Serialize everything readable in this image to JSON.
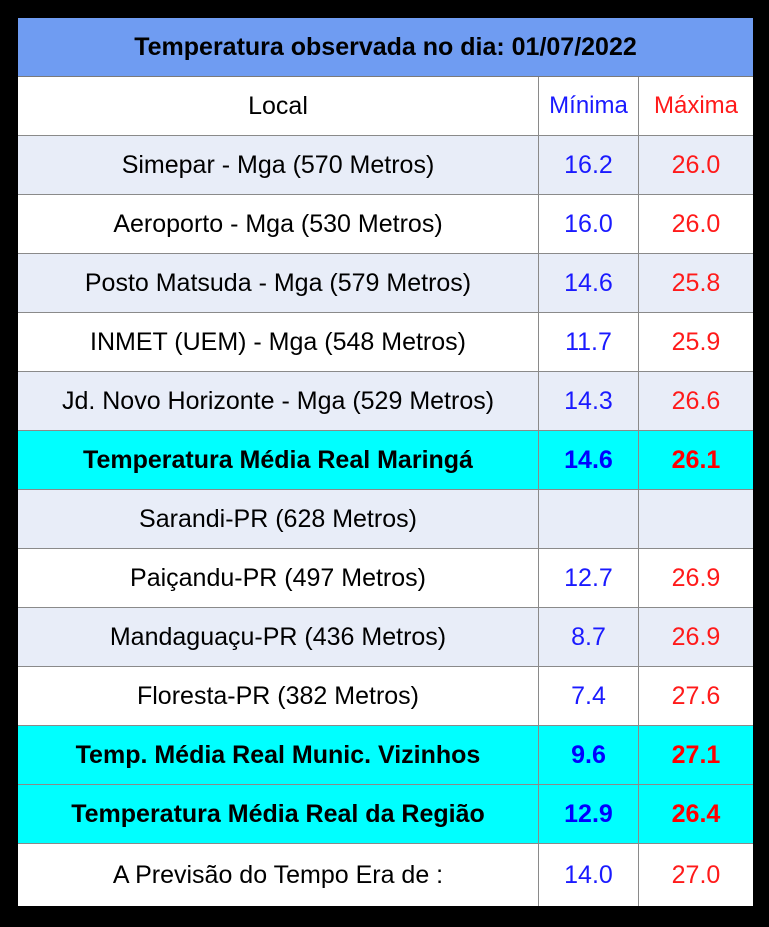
{
  "title": "Temperatura observada no dia: 01/07/2022",
  "header": {
    "local": "Local",
    "min": "Mínima",
    "max": "Máxima"
  },
  "rows": [
    {
      "local": "Simepar - Mga  (570 Metros)",
      "min": "16.2",
      "max": "26.0"
    },
    {
      "local": "Aeroporto - Mga (530 Metros)",
      "min": "16.0",
      "max": "26.0"
    },
    {
      "local": "Posto Matsuda - Mga (579 Metros)",
      "min": "14.6",
      "max": "25.8"
    },
    {
      "local": "INMET (UEM) - Mga  (548 Metros)",
      "min": "11.7",
      "max": "25.9"
    },
    {
      "local": "Jd. Novo Horizonte - Mga (529 Metros)",
      "min": "14.3",
      "max": "26.6"
    },
    {
      "local": "Temperatura Média Real Maringá",
      "min": "14.6",
      "max": "26.1"
    },
    {
      "local": "Sarandi-PR  (628 Metros)",
      "min": "",
      "max": ""
    },
    {
      "local": "Paiçandu-PR (497 Metros)",
      "min": "12.7",
      "max": "26.9"
    },
    {
      "local": "Mandaguaçu-PR (436 Metros)",
      "min": "8.7",
      "max": "26.9"
    },
    {
      "local": "Floresta-PR (382 Metros)",
      "min": "7.4",
      "max": "27.6"
    },
    {
      "local": "Temp. Média Real Munic. Vizinhos",
      "min": "9.6",
      "max": "27.1"
    },
    {
      "local": "Temperatura Média Real da Região",
      "min": "12.9",
      "max": "26.4"
    },
    {
      "local": "A Previsão do Tempo Era de :",
      "min": "14.0",
      "max": "27.0"
    }
  ],
  "colors": {
    "title_bg": "#6f9cf2",
    "highlight_bg": "#00ffff",
    "alt_row_bg": "#e8edf8",
    "min_text": "#1a1aff",
    "max_text": "#ff1a1a"
  }
}
